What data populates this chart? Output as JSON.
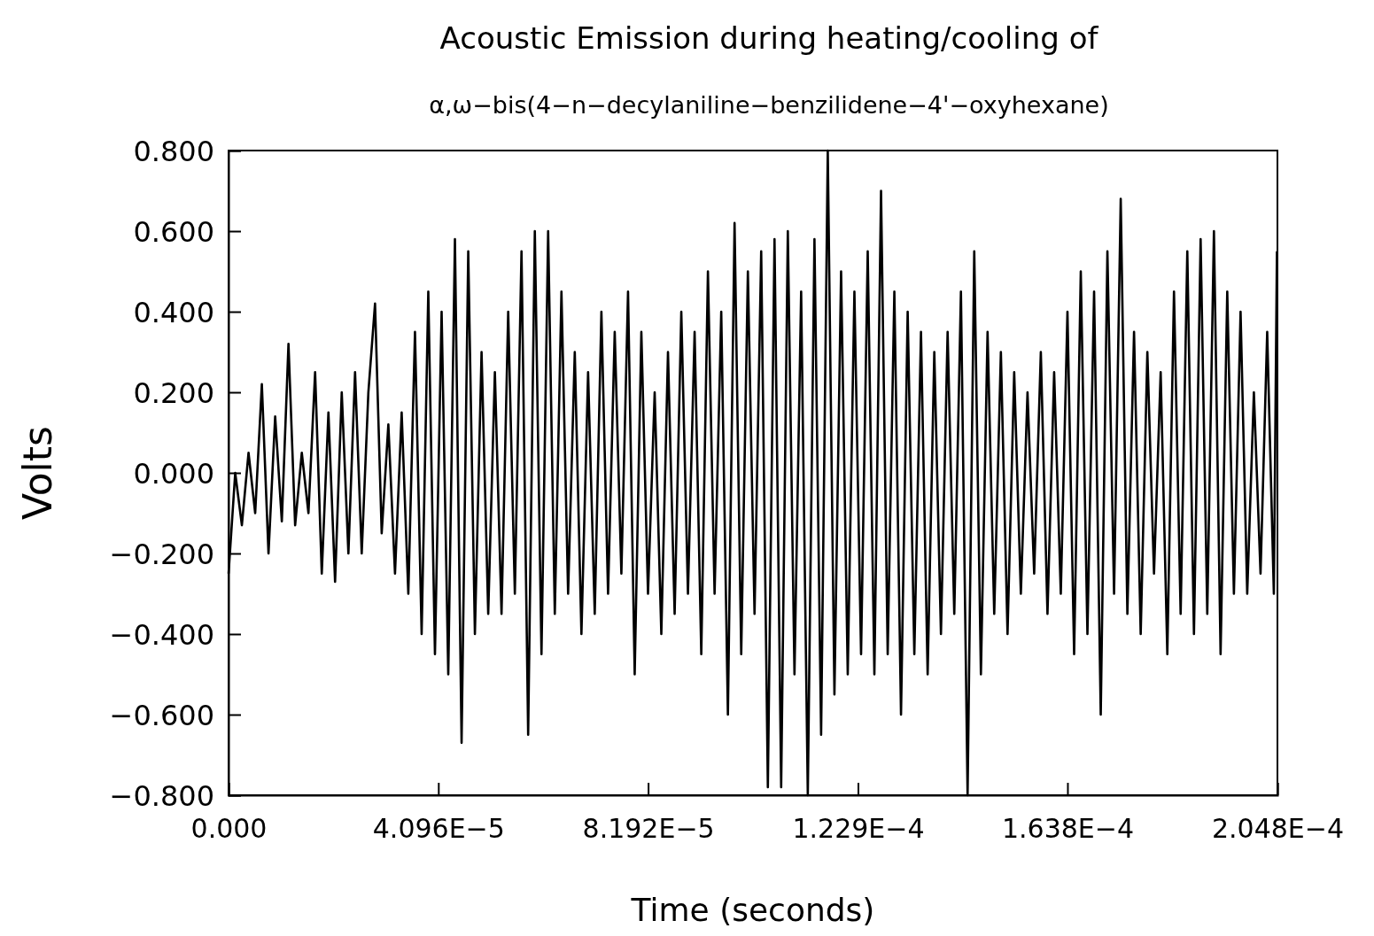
{
  "chart_data": {
    "type": "line",
    "title": "Acoustic Emission during heating/cooling of",
    "subtitle": "α,ω−bis(4−n−decylaniline−benzilidene−4'−oxyhexane)",
    "xlabel": "Time (seconds)",
    "ylabel": "Volts",
    "x": [
      0,
      1.3e-06,
      2.6e-06,
      3.9e-06,
      5.2e-06,
      6.5e-06,
      7.8e-06,
      9.1e-06,
      1.04e-05,
      1.17e-05,
      1.3e-05,
      1.43e-05,
      1.56e-05,
      1.69e-05,
      1.82e-05,
      1.95e-05,
      2.08e-05,
      2.21e-05,
      2.34e-05,
      2.47e-05,
      2.6e-05,
      2.73e-05,
      2.86e-05,
      2.99e-05,
      3.12e-05,
      3.25e-05,
      3.38e-05,
      3.51e-05,
      3.64e-05,
      3.77e-05,
      3.9e-05,
      4.03e-05,
      4.16e-05,
      4.29e-05,
      4.42e-05,
      4.55e-05,
      4.68e-05,
      4.81e-05,
      4.94e-05,
      5.07e-05,
      5.2e-05,
      5.33e-05,
      5.46e-05,
      5.59e-05,
      5.72e-05,
      5.85e-05,
      5.98e-05,
      6.11e-05,
      6.24e-05,
      6.37e-05,
      6.5e-05,
      6.63e-05,
      6.76e-05,
      6.89e-05,
      7.02e-05,
      7.15e-05,
      7.28e-05,
      7.41e-05,
      7.54e-05,
      7.67e-05,
      7.8e-05,
      7.93e-05,
      8.06e-05,
      8.19e-05,
      8.32e-05,
      8.45e-05,
      8.58e-05,
      8.71e-05,
      8.84e-05,
      8.97e-05,
      9.1e-05,
      9.23e-05,
      9.36e-05,
      9.49e-05,
      9.62e-05,
      9.75e-05,
      9.88e-05,
      0.0001001,
      0.0001014,
      0.0001027,
      0.000104,
      0.0001053,
      0.0001066,
      0.0001079,
      0.0001092,
      0.0001105,
      0.0001118,
      0.0001131,
      0.0001144,
      0.0001157,
      0.000117,
      0.0001183,
      0.0001196,
      0.0001209,
      0.0001222,
      0.0001235,
      0.0001248,
      0.0001261,
      0.0001274,
      0.0001287,
      0.00013,
      0.0001313,
      0.0001326,
      0.0001339,
      0.0001352,
      0.0001365,
      0.0001378,
      0.0001391,
      0.0001404,
      0.0001417,
      0.000143,
      0.0001443,
      0.0001456,
      0.0001469,
      0.0001482,
      0.0001495,
      0.0001508,
      0.0001521,
      0.0001534,
      0.0001547,
      0.000156,
      0.0001573,
      0.0001586,
      0.0001599,
      0.0001612,
      0.0001625,
      0.0001638,
      0.0001651,
      0.0001664,
      0.0001677,
      0.000169,
      0.0001703,
      0.0001716,
      0.0001729,
      0.0001742,
      0.0001755,
      0.0001768,
      0.0001781,
      0.0001794,
      0.0001807,
      0.000182,
      0.0001833,
      0.0001846,
      0.0001859,
      0.0001872,
      0.0001885,
      0.0001898,
      0.0001911,
      0.0001924,
      0.0001937,
      0.000195,
      0.0001963,
      0.0001976,
      0.0001989,
      0.0002002,
      0.0002015,
      0.0002028,
      0.0002041,
      0.0002047
    ],
    "series": [
      {
        "color": "#000000",
        "values": [
          -0.25,
          0.0,
          -0.13,
          0.05,
          -0.1,
          0.22,
          -0.2,
          0.14,
          -0.12,
          0.32,
          -0.13,
          0.05,
          -0.1,
          0.25,
          -0.25,
          0.15,
          -0.27,
          0.2,
          -0.2,
          0.25,
          -0.2,
          0.2,
          0.42,
          -0.15,
          0.12,
          -0.25,
          0.15,
          -0.3,
          0.35,
          -0.4,
          0.45,
          -0.45,
          0.4,
          -0.5,
          0.58,
          -0.67,
          0.55,
          -0.4,
          0.3,
          -0.35,
          0.25,
          -0.35,
          0.4,
          -0.3,
          0.55,
          -0.65,
          0.6,
          -0.45,
          0.6,
          -0.35,
          0.45,
          -0.3,
          0.3,
          -0.4,
          0.25,
          -0.35,
          0.4,
          -0.3,
          0.35,
          -0.25,
          0.45,
          -0.5,
          0.35,
          -0.3,
          0.2,
          -0.4,
          0.3,
          -0.35,
          0.4,
          -0.3,
          0.35,
          -0.45,
          0.5,
          -0.3,
          0.4,
          -0.6,
          0.62,
          -0.45,
          0.5,
          -0.35,
          0.55,
          -0.78,
          0.58,
          -0.78,
          0.6,
          -0.5,
          0.45,
          -0.8,
          0.58,
          -0.65,
          0.8,
          -0.55,
          0.5,
          -0.5,
          0.45,
          -0.45,
          0.55,
          -0.5,
          0.7,
          -0.45,
          0.45,
          -0.6,
          0.4,
          -0.45,
          0.35,
          -0.5,
          0.3,
          -0.4,
          0.35,
          -0.35,
          0.45,
          -0.8,
          0.55,
          -0.5,
          0.35,
          -0.35,
          0.3,
          -0.4,
          0.25,
          -0.3,
          0.2,
          -0.25,
          0.3,
          -0.35,
          0.25,
          -0.3,
          0.4,
          -0.45,
          0.5,
          -0.4,
          0.45,
          -0.6,
          0.55,
          -0.3,
          0.68,
          -0.35,
          0.35,
          -0.4,
          0.3,
          -0.25,
          0.25,
          -0.45,
          0.45,
          -0.35,
          0.55,
          -0.4,
          0.58,
          -0.35,
          0.6,
          -0.45,
          0.45,
          -0.3,
          0.4,
          -0.3,
          0.2,
          -0.25,
          0.35,
          -0.3,
          0.55
        ]
      }
    ],
    "xlim": [
      0,
      0.0002048
    ],
    "xticks": [
      {
        "value": 0,
        "label": "0.000"
      },
      {
        "value": 4.096e-05,
        "label": "4.096E−5"
      },
      {
        "value": 8.192e-05,
        "label": "8.192E−5"
      },
      {
        "value": 0.0001229,
        "label": "1.229E−4"
      },
      {
        "value": 0.0001638,
        "label": "1.638E−4"
      },
      {
        "value": 0.0002048,
        "label": "2.048E−4"
      }
    ],
    "ylim": [
      -0.8,
      0.8
    ],
    "yticks": [
      {
        "value": -0.8,
        "label": "−0.800"
      },
      {
        "value": -0.6,
        "label": "−0.600"
      },
      {
        "value": -0.4,
        "label": "−0.400"
      },
      {
        "value": -0.2,
        "label": "−0.200"
      },
      {
        "value": 0,
        "label": "0.000"
      },
      {
        "value": 0.2,
        "label": "0.200"
      },
      {
        "value": 0.4,
        "label": "0.400"
      },
      {
        "value": 0.6,
        "label": "0.600"
      },
      {
        "value": 0.8,
        "label": "0.800"
      }
    ],
    "grid": false,
    "line_style": "solid",
    "marker": "none"
  }
}
